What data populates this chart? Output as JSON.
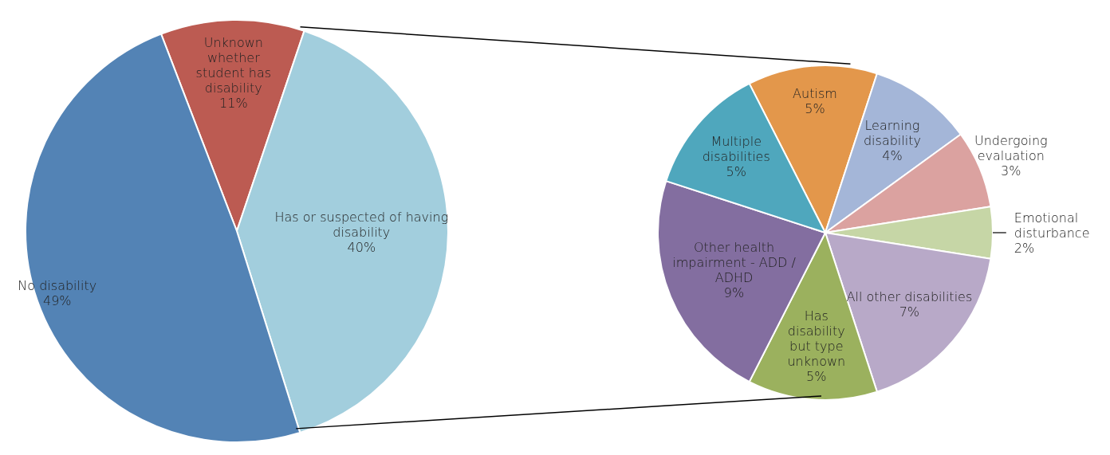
{
  "chart_data": [
    {
      "type": "pie",
      "categories": [
        "Unknown whether student has disability",
        "Has or suspected of having disability",
        "No disability"
      ],
      "values": [
        11,
        40,
        49
      ],
      "colors": [
        "#bc5b52",
        "#a2cedd",
        "#5383b5"
      ],
      "value_labels": [
        "11%",
        "40%",
        "49%"
      ]
    },
    {
      "type": "pie",
      "categories": [
        "Autism",
        "Learning disability",
        "Undergoing evaluation",
        "Emotional disturbance",
        "All other disabilities",
        "Has disability but type unknown",
        "Other health impairment - ADD / ADHD",
        "Multiple disabilities"
      ],
      "values": [
        5,
        4,
        3,
        2,
        7,
        5,
        9,
        5
      ],
      "colors": [
        "#e3974b",
        "#a4b6d8",
        "#dba2a0",
        "#c6d6a6",
        "#b8a9c8",
        "#9bb15e",
        "#836ea0",
        "#4fa7bd"
      ],
      "value_labels": [
        "5%",
        "4%",
        "3%",
        "2%",
        "7%",
        "5%",
        "9%",
        "5%"
      ]
    }
  ]
}
